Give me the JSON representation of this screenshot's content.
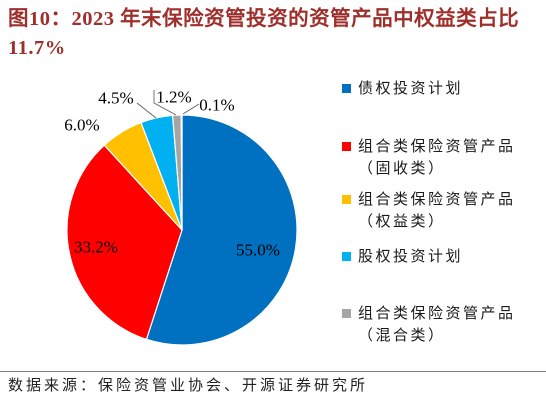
{
  "chart_data": {
    "type": "pie",
    "title_lines": [
      "图10：2023 年末保险资管投资的资管产品中权益类占比",
      "11.7%"
    ],
    "legend_position": "right",
    "slices": [
      {
        "value": 55.0,
        "label": "55.0%",
        "legend_lines": [
          "债权投资计划"
        ],
        "color": "#0070C0"
      },
      {
        "value": 33.2,
        "label": "33.2%",
        "legend_lines": [
          "组合类保险资管产品",
          "（固收类）"
        ],
        "color": "#FF0000"
      },
      {
        "value": 6.0,
        "label": "6.0%",
        "legend_lines": [
          "组合类保险资管产品",
          "（权益类）"
        ],
        "color": "#FFC000"
      },
      {
        "value": 4.5,
        "label": "4.5%",
        "legend_lines": [
          "股权投资计划"
        ],
        "color": "#00B0F0"
      },
      {
        "value": 1.2,
        "label": "1.2%",
        "legend_lines": [
          "组合类保险资管产品",
          "（混合类）"
        ],
        "color": "#A5A5A5"
      },
      {
        "value": 0.1,
        "label": "0.1%",
        "legend_lines": [],
        "color": "#7F7F7F"
      }
    ]
  },
  "source": "数据来源：保险资管业协会、开源证券研究所",
  "colors": {
    "title": "#9E2F2B",
    "slice_border": "#FFFFFF",
    "leader": "#595959"
  }
}
